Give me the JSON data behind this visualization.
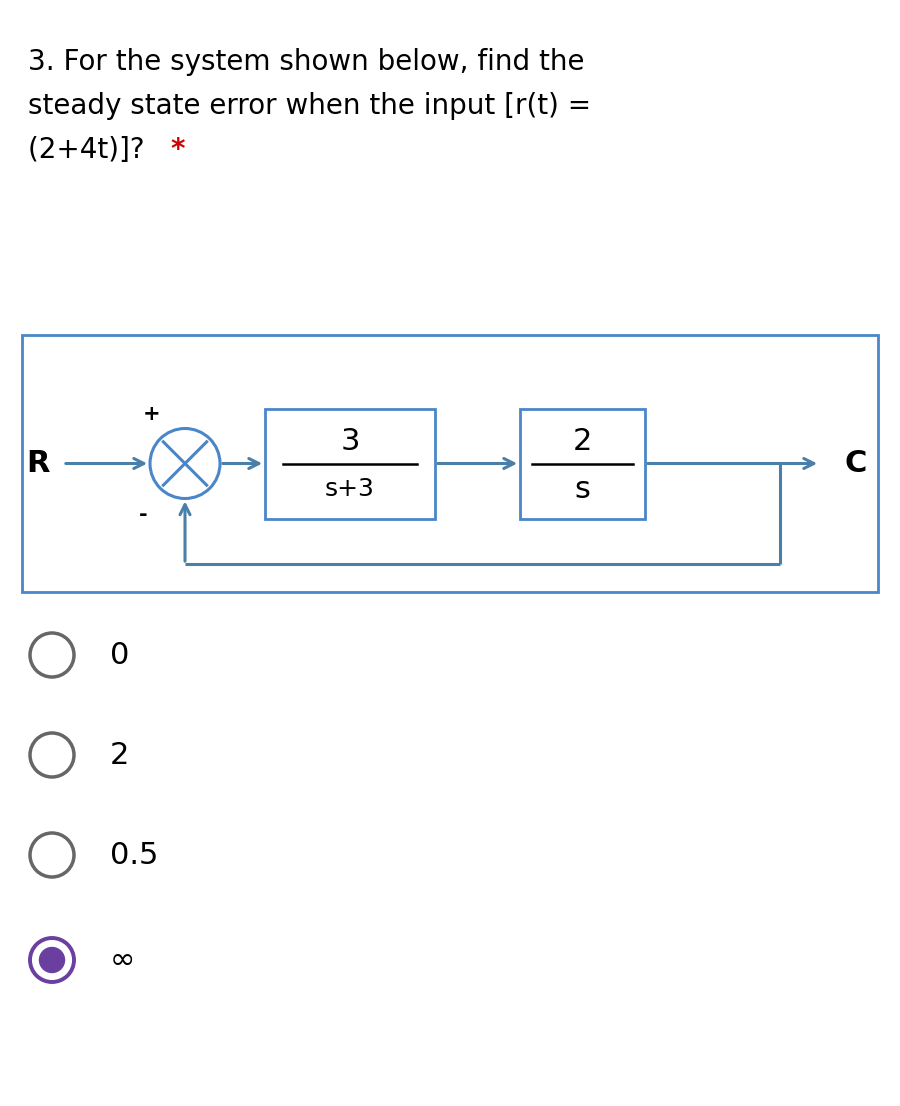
{
  "title_line1": "3. For the system shown below, find the",
  "title_line2": "steady state error when the input [r(t) =",
  "title_line3_main": "(2+4t)]? ",
  "title_line3_star": "*",
  "star_color": "#cc0000",
  "bg_color": "#ffffff",
  "diagram_border_color": "#4a86c8",
  "block_border_color": "#4a86c8",
  "arrow_color": "#4a7fa8",
  "text_color": "#000000",
  "block1_num": "3",
  "block1_den": "s+3",
  "block2_num": "2",
  "block2_den": "s",
  "input_label": "R",
  "output_label": "C",
  "options": [
    "0",
    "2",
    "0.5",
    "∞"
  ],
  "selected_option": 3,
  "option_color_unselected": "#666666",
  "option_color_selected": "#6b3fa0",
  "option_fill_selected": "#6b3fa0",
  "title_fontsize": 20,
  "label_fontsize": 22,
  "option_fontsize": 22
}
